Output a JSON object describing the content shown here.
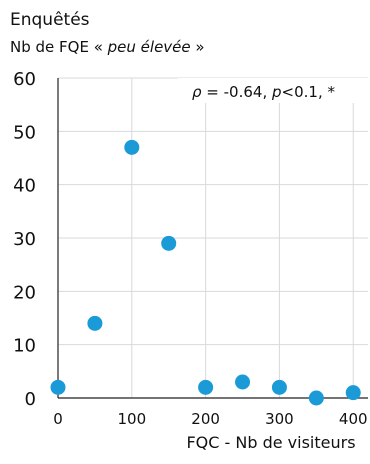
{
  "chart_data": {
    "type": "scatter",
    "title": "Enquêtés",
    "subtitle_prefix": "Nb de FQE « ",
    "subtitle_emph": "peu élevée",
    "subtitle_suffix": " »",
    "xlabel": "FQC - Nb de visiteurs",
    "ylabel": "",
    "xlim": [
      0,
      420
    ],
    "ylim": [
      0,
      60
    ],
    "xticks": [
      0,
      100,
      200,
      300,
      400
    ],
    "yticks": [
      0,
      10,
      20,
      30,
      40,
      50,
      60
    ],
    "xtick_labels": [
      "0",
      "100",
      "200",
      "300",
      "400"
    ],
    "ytick_labels": [
      "0",
      "10",
      "20",
      "30",
      "40",
      "50",
      "60"
    ],
    "grid": true,
    "annotation": {
      "rho_symbol": "ρ",
      "rho_text": " = -0.64, ",
      "p_symbol": "p",
      "p_text": "<0.1, *"
    },
    "marker_color": "#1a9bd7",
    "points": [
      {
        "x": 0,
        "y": 2
      },
      {
        "x": 50,
        "y": 14
      },
      {
        "x": 100,
        "y": 47
      },
      {
        "x": 150,
        "y": 29
      },
      {
        "x": 200,
        "y": 2
      },
      {
        "x": 250,
        "y": 3
      },
      {
        "x": 300,
        "y": 2
      },
      {
        "x": 350,
        "y": 0
      },
      {
        "x": 400,
        "y": 1
      }
    ]
  }
}
